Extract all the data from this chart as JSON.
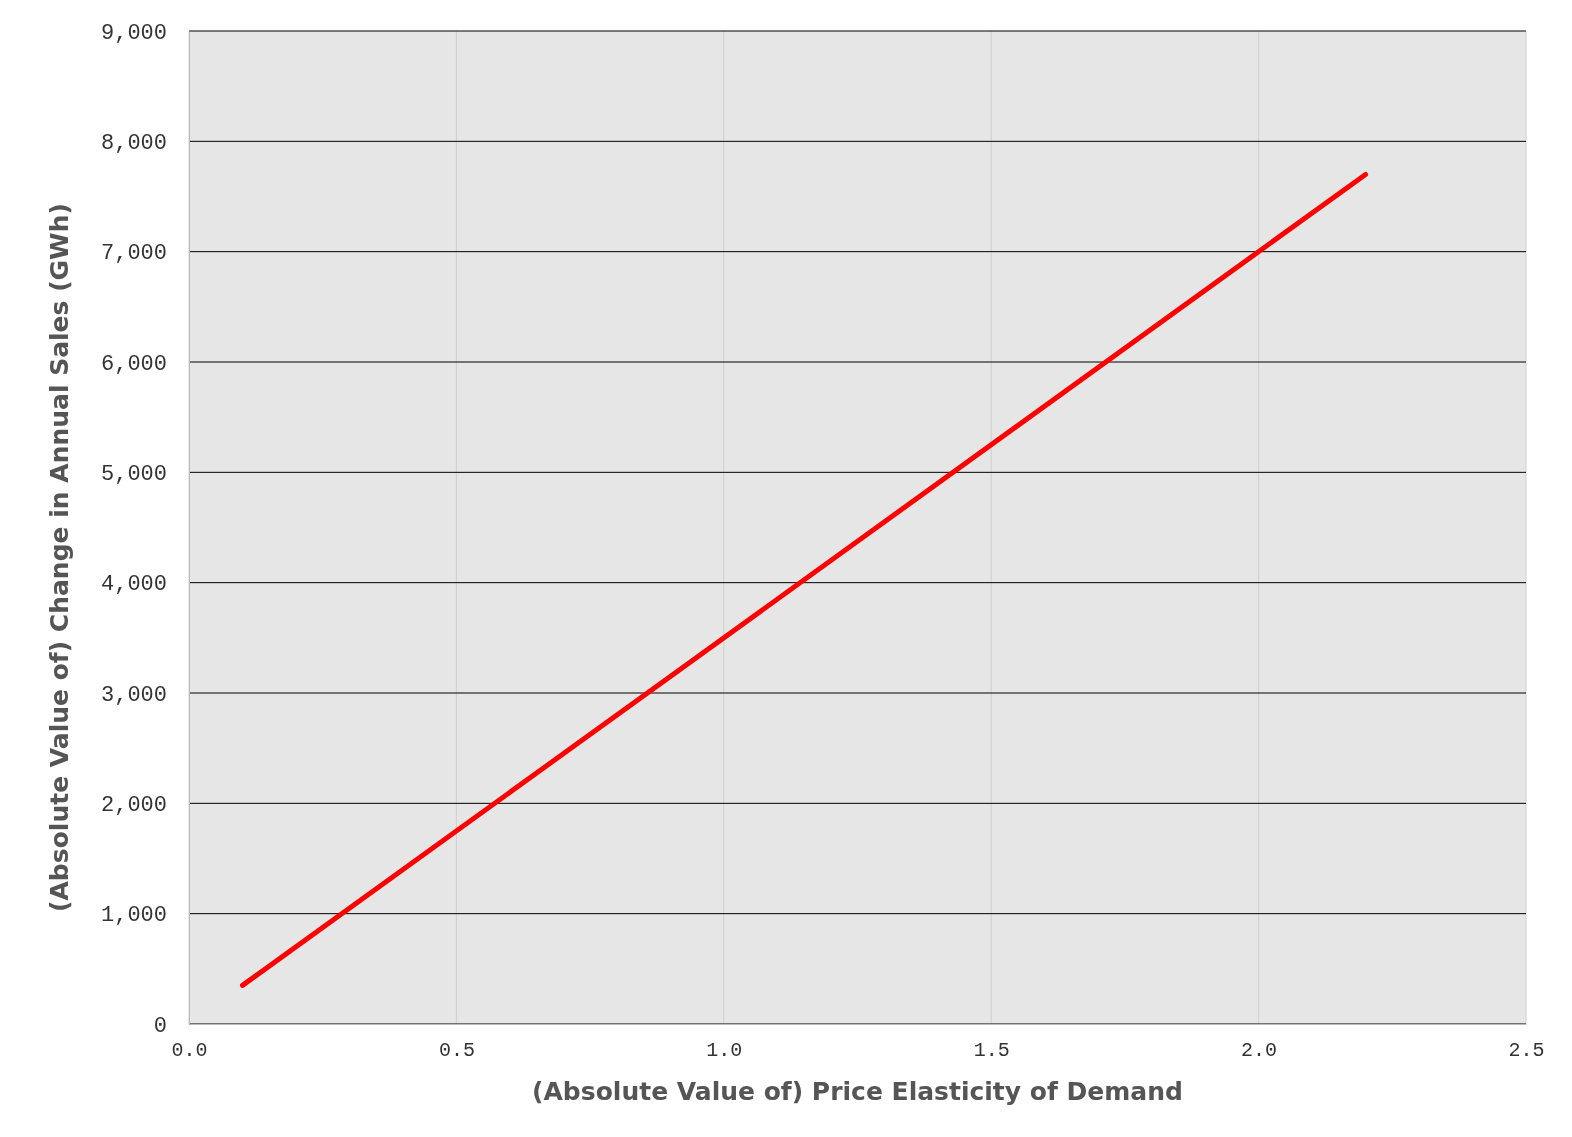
{
  "chart_data": {
    "type": "line",
    "xlabel": "(Absolute Value of) Price Elasticity of Demand",
    "ylabel": "(Absolute Value of) Change in Annual Sales (GWh)",
    "x": [
      0.1,
      2.2
    ],
    "series": [
      {
        "color": "#ff0000",
        "values": [
          350,
          7700
        ]
      }
    ],
    "xlim": [
      0,
      2.5
    ],
    "xticks": [
      {
        "value": 0,
        "label": "0.0"
      },
      {
        "value": 0.5,
        "label": "0.5"
      },
      {
        "value": 1,
        "label": "1.0"
      },
      {
        "value": 1.5,
        "label": "1.5"
      },
      {
        "value": 2,
        "label": "2.0"
      },
      {
        "value": 2.5,
        "label": "2.5"
      }
    ],
    "ylim": [
      0,
      9000
    ],
    "yticks": [
      0,
      {
        "value": 1000,
        "label": "1,000"
      },
      {
        "value": 2000,
        "label": "2,000"
      },
      {
        "value": 3000,
        "label": "3,000"
      },
      {
        "value": 4000,
        "label": "4,000"
      },
      {
        "value": 5000,
        "label": "5,000"
      },
      {
        "value": 6000,
        "label": "6,000"
      },
      {
        "value": 7000,
        "label": "7,000"
      },
      {
        "value": 8000,
        "label": "8,000"
      },
      {
        "value": 9000,
        "label": "9,000"
      }
    ],
    "grid": true,
    "marker": "none",
    "line_style": "solid"
  }
}
